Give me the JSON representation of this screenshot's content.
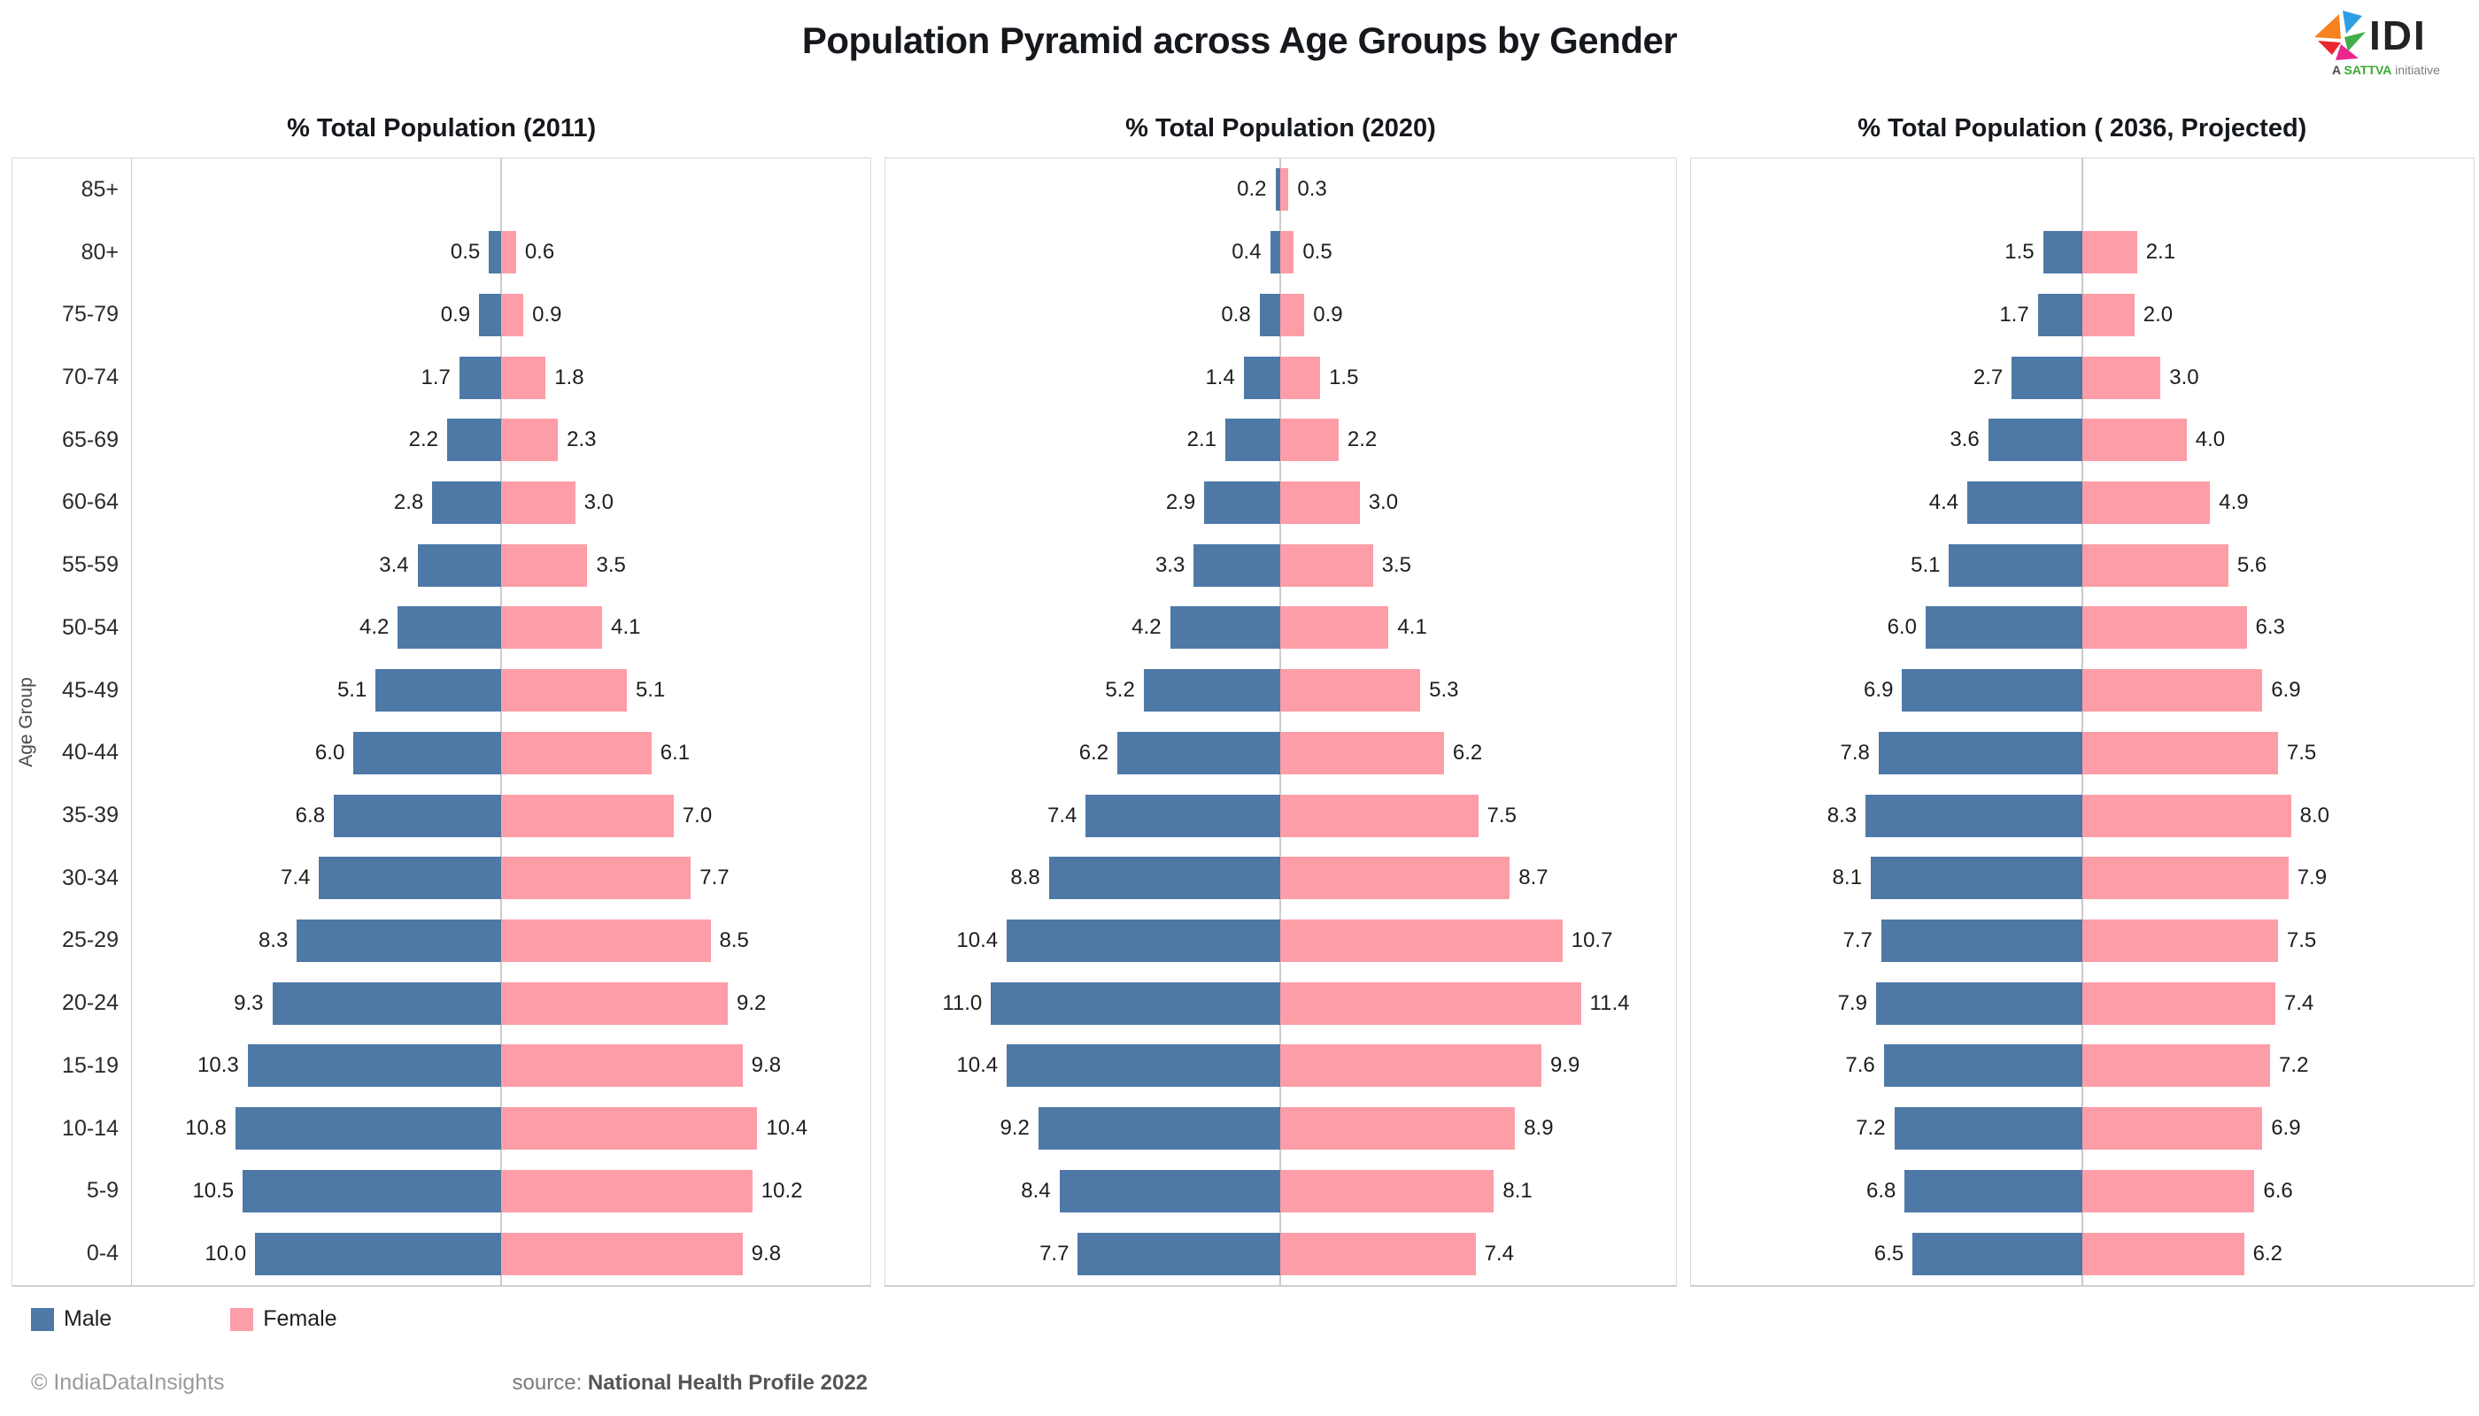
{
  "header": {
    "title": "Population Pyramid across Age Groups by Gender",
    "logo": {
      "text": "IDI",
      "tagline_prefix": "A ",
      "tagline_brand": "SATTVA",
      "tagline_suffix": " initiative",
      "brand_color": "#3aaa35"
    }
  },
  "chart_data": {
    "type": "bar",
    "subtype": "population-pyramid-diverging-horizontal",
    "ylabel": "Age Group",
    "age_groups": [
      "85+",
      "80+",
      "75-79",
      "70-74",
      "65-69",
      "60-64",
      "55-59",
      "50-54",
      "45-49",
      "40-44",
      "35-39",
      "30-34",
      "25-29",
      "20-24",
      "15-19",
      "10-14",
      "5-9",
      "0-4"
    ],
    "axis_max_percent": 15,
    "grid": "center-axis-only",
    "value_label_format": "one-decimal",
    "colors": {
      "male": "#4e79a7",
      "female": "#fd9da7"
    },
    "panels": [
      {
        "title": "% Total Population (2011)",
        "series": [
          {
            "name": "Male",
            "values": [
              null,
              0.5,
              0.9,
              1.7,
              2.2,
              2.8,
              3.4,
              4.2,
              5.1,
              6.0,
              6.8,
              7.4,
              8.3,
              9.3,
              10.3,
              10.8,
              10.5,
              10.0
            ]
          },
          {
            "name": "Female",
            "values": [
              null,
              0.6,
              0.9,
              1.8,
              2.3,
              3.0,
              3.5,
              4.1,
              5.1,
              6.1,
              7.0,
              7.7,
              8.5,
              9.2,
              9.8,
              10.4,
              10.2,
              9.8
            ]
          }
        ]
      },
      {
        "title": "% Total Population (2020)",
        "series": [
          {
            "name": "Male",
            "values": [
              0.2,
              0.4,
              0.8,
              1.4,
              2.1,
              2.9,
              3.3,
              4.2,
              5.2,
              6.2,
              7.4,
              8.8,
              10.4,
              11.0,
              10.4,
              9.2,
              8.4,
              7.7
            ]
          },
          {
            "name": "Female",
            "values": [
              0.3,
              0.5,
              0.9,
              1.5,
              2.2,
              3.0,
              3.5,
              4.1,
              5.3,
              6.2,
              7.5,
              8.7,
              10.7,
              11.4,
              9.9,
              8.9,
              8.1,
              7.4
            ]
          }
        ]
      },
      {
        "title": "% Total Population ( 2036, Projected)",
        "series": [
          {
            "name": "Male",
            "values": [
              null,
              1.5,
              1.7,
              2.7,
              3.6,
              4.4,
              5.1,
              6.0,
              6.9,
              7.8,
              8.3,
              8.1,
              7.7,
              7.9,
              7.6,
              7.2,
              6.8,
              6.5
            ]
          },
          {
            "name": "Female",
            "values": [
              null,
              2.1,
              2.0,
              3.0,
              4.0,
              4.9,
              5.6,
              6.3,
              6.9,
              7.5,
              8.0,
              7.9,
              7.5,
              7.4,
              7.2,
              6.9,
              6.6,
              6.2
            ]
          }
        ]
      }
    ]
  },
  "legend": {
    "items": [
      {
        "label": "Male",
        "color": "#4e79a7"
      },
      {
        "label": "Female",
        "color": "#fd9da7"
      }
    ]
  },
  "footer": {
    "copyright": "© IndiaDataInsights",
    "source_label": "source:",
    "source_value": "National Health Profile 2022"
  }
}
